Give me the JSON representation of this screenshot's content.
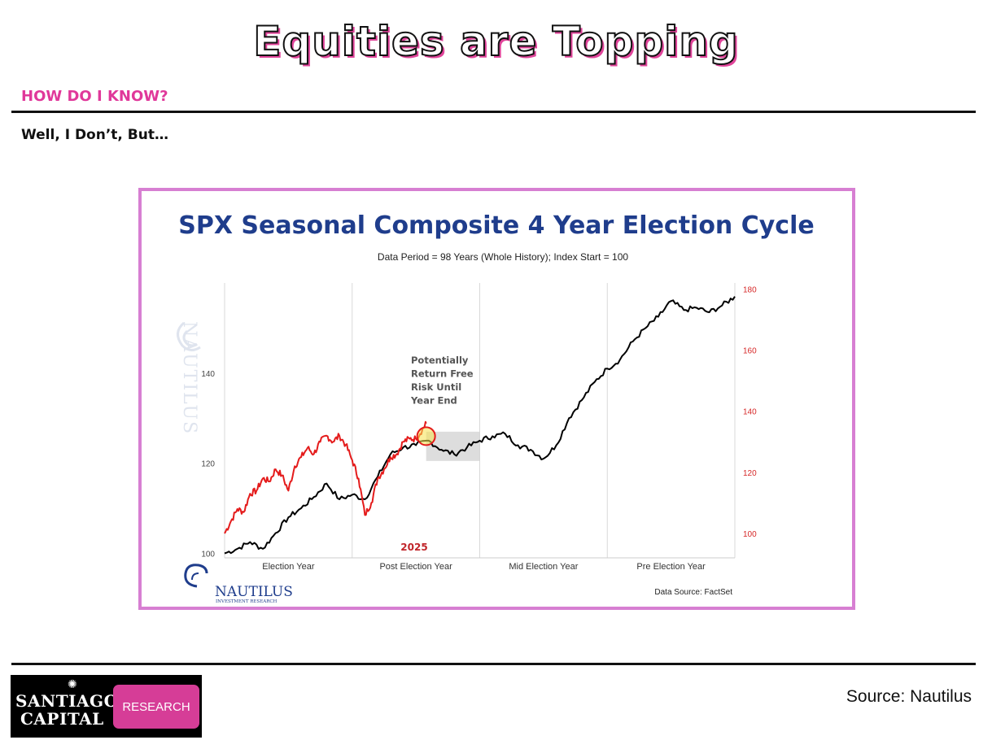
{
  "slide": {
    "title": "Equities are Topping",
    "kicker": "HOW DO I KNOW?",
    "subhead": "Well, I Don’t, But…",
    "source": "Source: Nautilus"
  },
  "branding": {
    "line1": "SANTIAGO",
    "line2": "CAPITAL",
    "badge": "RESEARCH",
    "chart_logo": "NAUTILUS",
    "chart_logo_sub": "INVESTMENT RESEARCH",
    "watermark": "NAUTILUS"
  },
  "colors": {
    "accent_pink": "#e0389a",
    "frame": "#d77fd2",
    "chart_title": "#1f3d8c",
    "composite_line": "#000000",
    "current_line": "#e41b1b",
    "highlight_circle": "#f5e14a"
  },
  "chart_data": {
    "type": "line",
    "title": "SPX Seasonal Composite 4 Year Election Cycle",
    "subtitle": "Data Period = 98 Years (Whole History); Index Start = 100",
    "categories": [
      "Election Year",
      "Post Election Year",
      "Mid Election Year",
      "Pre Election Year"
    ],
    "x_range": [
      0,
      4
    ],
    "grid": "vertical",
    "left_axis": {
      "ticks": [
        100,
        120,
        140
      ],
      "range": [
        99,
        160
      ]
    },
    "right_axis": {
      "ticks": [
        100,
        120,
        140,
        160,
        180
      ],
      "range": [
        92,
        182
      ]
    },
    "annotation": "Potentially\nReturn Free\nRisk Until\nYear End",
    "year_label": "2025",
    "data_source": "Data Source: FactSet",
    "highlight": {
      "x": 1.58,
      "y": 126
    },
    "risk_zone": {
      "x_start": 1.58,
      "x_end": 2.0,
      "y_low": 120.5,
      "y_high": 127
    },
    "series": [
      {
        "axis": "left",
        "x": [
          0,
          0.1,
          0.2,
          0.3,
          0.4,
          0.5,
          0.6,
          0.7,
          0.8,
          0.9,
          1.0,
          1.1,
          1.2,
          1.3,
          1.4,
          1.5,
          1.6,
          1.7,
          1.8,
          1.9,
          2.0,
          2.1,
          2.2,
          2.3,
          2.4,
          2.5,
          2.6,
          2.7,
          2.8,
          2.9,
          3.0,
          3.1,
          3.2,
          3.3,
          3.4,
          3.5,
          3.6,
          3.7,
          3.8,
          3.9,
          4.0
        ],
        "values": [
          100,
          101,
          102.5,
          101,
          104.5,
          108,
          110,
          112.5,
          115.5,
          112,
          113,
          112,
          117,
          122,
          123.5,
          124,
          125,
          123,
          122,
          123.5,
          125,
          126,
          126.5,
          124,
          123,
          121,
          124,
          130,
          134,
          138,
          141,
          143,
          147,
          150,
          152.5,
          156,
          154,
          154.5,
          153.5,
          155,
          157
        ]
      },
      {
        "axis": "right",
        "x": [
          0,
          0.05,
          0.1,
          0.15,
          0.2,
          0.25,
          0.3,
          0.35,
          0.4,
          0.45,
          0.5,
          0.55,
          0.6,
          0.65,
          0.7,
          0.75,
          0.8,
          0.85,
          0.9,
          0.95,
          1.0,
          1.05,
          1.1,
          1.15,
          1.2,
          1.25,
          1.3,
          1.35,
          1.4,
          1.45,
          1.5,
          1.55,
          1.58
        ],
        "values": [
          100,
          104,
          108,
          107,
          113,
          114,
          118,
          117,
          121,
          119,
          114,
          122,
          125,
          128,
          126,
          130,
          132,
          130,
          132,
          129,
          124,
          118,
          106,
          110,
          118,
          121,
          125,
          126,
          130,
          131,
          131,
          134,
          136
        ]
      }
    ]
  }
}
